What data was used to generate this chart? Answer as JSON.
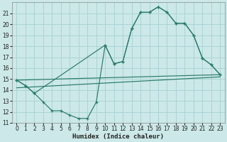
{
  "background_color": "#cce8e8",
  "grid_color": "#aad4d4",
  "line_color": "#2a7a6a",
  "marker_color": "#2a7a6a",
  "line1_x": [
    0,
    1,
    2,
    3,
    4,
    5,
    6,
    7,
    8,
    9,
    10,
    11,
    12,
    13,
    14,
    15,
    16,
    17,
    18,
    19,
    20,
    21,
    22,
    23
  ],
  "line1_y": [
    14.9,
    14.4,
    13.7,
    12.9,
    12.1,
    12.1,
    11.7,
    11.4,
    11.4,
    12.9,
    18.1,
    16.4,
    16.6,
    19.6,
    21.1,
    21.1,
    21.6,
    21.1,
    20.1,
    20.1,
    19.0,
    16.9,
    16.3,
    15.4
  ],
  "line2_x": [
    0,
    1,
    2,
    10,
    11,
    12,
    13,
    14,
    15,
    16,
    17,
    18,
    19,
    20,
    21,
    22,
    23
  ],
  "line2_y": [
    14.9,
    14.4,
    13.7,
    18.1,
    16.4,
    16.6,
    19.6,
    21.1,
    21.1,
    21.6,
    21.1,
    20.1,
    20.1,
    19.0,
    16.9,
    16.3,
    15.4
  ],
  "line3_x": [
    0,
    23
  ],
  "line3_y": [
    14.9,
    15.4
  ],
  "line4_x": [
    0,
    23
  ],
  "line4_y": [
    14.2,
    15.2
  ],
  "xlabel": "Humidex (Indice chaleur)",
  "xlim": [
    -0.5,
    23.5
  ],
  "ylim": [
    11,
    22
  ],
  "yticks": [
    11,
    12,
    13,
    14,
    15,
    16,
    17,
    18,
    19,
    20,
    21
  ],
  "xticks": [
    0,
    1,
    2,
    3,
    4,
    5,
    6,
    7,
    8,
    9,
    10,
    11,
    12,
    13,
    14,
    15,
    16,
    17,
    18,
    19,
    20,
    21,
    22,
    23
  ],
  "xlabel_fontsize": 6.5,
  "tick_fontsize": 5.5
}
